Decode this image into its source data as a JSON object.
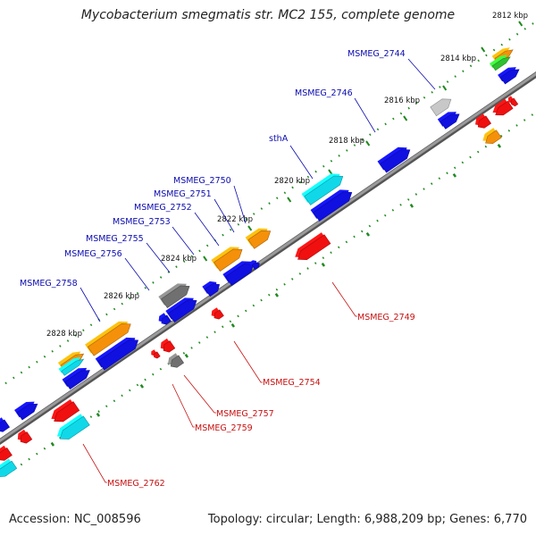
{
  "title": "Mycobacterium smegmatis str. MC2 155, complete genome",
  "footer": {
    "accession": "Accession: NC_008596",
    "topology": "Topology: circular; Length: 6,988,209 bp; Genes: 6,770"
  },
  "colors": {
    "backbone": "#8a8a8a",
    "tick_dots": "#1f8a1f",
    "forward_label": "#0b0bb0",
    "reverse_label": "#c81010",
    "blue": "#1010e0",
    "orange": "#f5900a",
    "cyan": "#10d8e8",
    "gray": "#707070",
    "lightgray": "#c8c8c8",
    "green": "#30c030",
    "red": "#f01010"
  },
  "ticks": [
    {
      "label": "2812 kbp"
    },
    {
      "label": "2814 kbp"
    },
    {
      "label": "2816 kbp"
    },
    {
      "label": "2818 kbp"
    },
    {
      "label": "2820 kbp"
    },
    {
      "label": "2822 kbp"
    },
    {
      "label": "2824 kbp"
    },
    {
      "label": "2826 kbp"
    },
    {
      "label": "2828 kbp"
    }
  ],
  "forward_labels": [
    {
      "text": "MSMEG_2744"
    },
    {
      "text": "MSMEG_2746"
    },
    {
      "text": "sthA"
    },
    {
      "text": "MSMEG_2750"
    },
    {
      "text": "MSMEG_2751"
    },
    {
      "text": "MSMEG_2752"
    },
    {
      "text": "MSMEG_2753"
    },
    {
      "text": "MSMEG_2755"
    },
    {
      "text": "MSMEG_2756"
    },
    {
      "text": "MSMEG_2758"
    }
  ],
  "reverse_labels": [
    {
      "text": "MSMEG_2749"
    },
    {
      "text": "MSMEG_2754"
    },
    {
      "text": "MSMEG_2757"
    },
    {
      "text": "MSMEG_2759"
    },
    {
      "text": "MSMEG_2762"
    }
  ]
}
